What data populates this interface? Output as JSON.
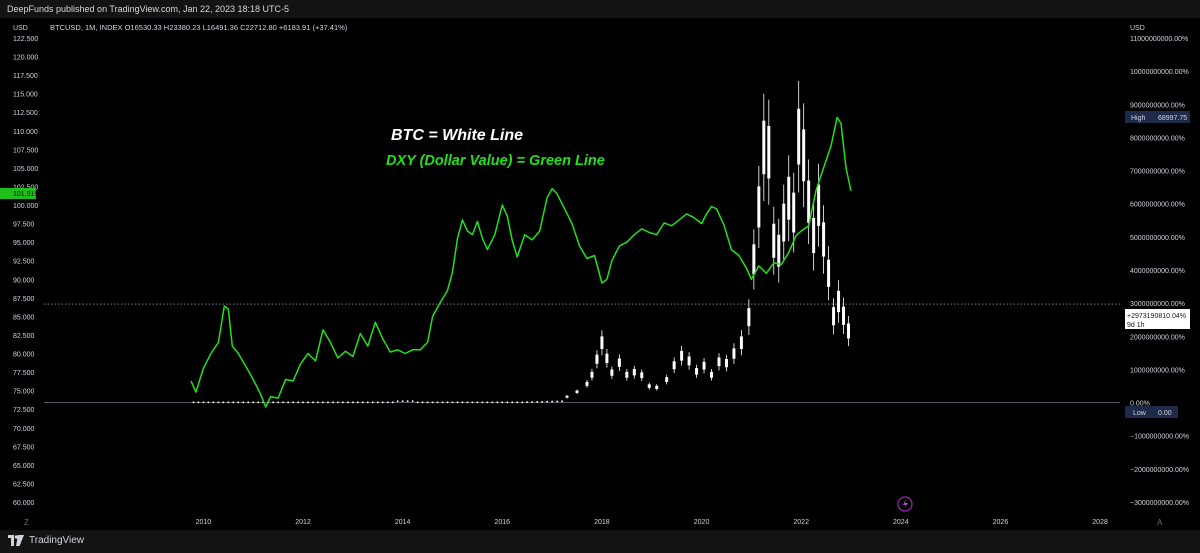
{
  "header": {
    "publisher_line": "DeepFunds published on TradingView.com, Jan 22, 2023 18:18 UTC-5"
  },
  "legend": {
    "ticker_line": "BTCUSD, 1M, INDEX  O16530.33  H23380.23  L16491.36  C22712.80  +6183.91 (+37.41%)"
  },
  "annotations": {
    "btc_label": "BTC = White Line",
    "dxy_label": "DXY (Dollar Value) = Green Line"
  },
  "left_axis": {
    "unit": "USD",
    "current_value_badge": "101.919"
  },
  "right_axis": {
    "unit": "USD",
    "high_label": "High",
    "high_value": "68997.75",
    "low_label": "Low",
    "low_value": "0.00",
    "current_pct": "+2973190810.04%",
    "countdown": "9d 1h"
  },
  "footer": {
    "brand": "TradingView",
    "left_corner": "Z",
    "right_corner": "A"
  },
  "colors": {
    "background": "#000000",
    "btc": "#ffffff",
    "dxy": "#22e01a",
    "badge_green": "#1fbf1a",
    "badge_navy": "#1e2a4a",
    "axis_text": "#d1d4dc"
  },
  "chart_data": {
    "type": "line",
    "x_ticks": [
      "2010",
      "2012",
      "2014",
      "2016",
      "2018",
      "2020",
      "2022",
      "2024",
      "2026",
      "2028"
    ],
    "left_ticks": [
      "122.500",
      "120.000",
      "117.500",
      "115.000",
      "112.500",
      "110.000",
      "107.500",
      "105.000",
      "102.500",
      "100.000",
      "97.500",
      "95.000",
      "92.500",
      "90.000",
      "87.500",
      "85.000",
      "82.500",
      "80.000",
      "77.500",
      "75.000",
      "72.500",
      "70.000",
      "67.500",
      "65.000",
      "62.500",
      "60.000"
    ],
    "right_ticks": [
      "11000000000.00%",
      "10000000000.00%",
      "9000000000.00%",
      "8000000000.00%",
      "7000000000.00%",
      "6000000000.00%",
      "5000000000.00%",
      "4000000000.00%",
      "3000000000.00%",
      "2000000000.00%",
      "1000000000.00%",
      "0.00%",
      "−1000000000.00%",
      "−2000000000.00%",
      "−3000000000.00%"
    ],
    "left_ylim": [
      60,
      122.5
    ],
    "right_ylim": [
      -3000000000,
      11000000000
    ],
    "x_range": [
      2006.8,
      2028.4
    ],
    "grid": false,
    "series": [
      {
        "name": "DXY (Dollar Value)",
        "axis": "left",
        "x": [
          2009.75,
          2009.85,
          2010.0,
          2010.15,
          2010.3,
          2010.42,
          2010.5,
          2010.58,
          2010.7,
          2010.85,
          2011.0,
          2011.15,
          2011.25,
          2011.35,
          2011.5,
          2011.65,
          2011.8,
          2011.95,
          2012.1,
          2012.25,
          2012.4,
          2012.55,
          2012.7,
          2012.85,
          2013.0,
          2013.15,
          2013.3,
          2013.45,
          2013.6,
          2013.75,
          2013.9,
          2014.05,
          2014.2,
          2014.35,
          2014.5,
          2014.6,
          2014.75,
          2014.9,
          2015.0,
          2015.1,
          2015.2,
          2015.3,
          2015.4,
          2015.5,
          2015.6,
          2015.7,
          2015.85,
          2016.0,
          2016.1,
          2016.2,
          2016.3,
          2016.45,
          2016.6,
          2016.75,
          2016.9,
          2017.0,
          2017.1,
          2017.25,
          2017.4,
          2017.55,
          2017.7,
          2017.85,
          2018.0,
          2018.1,
          2018.2,
          2018.35,
          2018.5,
          2018.65,
          2018.8,
          2018.95,
          2019.1,
          2019.25,
          2019.4,
          2019.55,
          2019.7,
          2019.85,
          2020.0,
          2020.1,
          2020.2,
          2020.3,
          2020.45,
          2020.6,
          2020.75,
          2020.9,
          2021.0,
          2021.15,
          2021.3,
          2021.45,
          2021.6,
          2021.75,
          2021.9,
          2022.0,
          2022.15,
          2022.3,
          2022.45,
          2022.6,
          2022.72,
          2022.8,
          2022.9,
          2023.0
        ],
        "values": [
          76.3,
          74.8,
          78.0,
          80.0,
          81.5,
          86.4,
          86.0,
          81.0,
          80.0,
          78.3,
          76.5,
          74.5,
          72.8,
          74.2,
          74.0,
          76.5,
          76.3,
          78.6,
          80.0,
          79.0,
          83.2,
          81.5,
          79.4,
          80.3,
          79.6,
          82.7,
          81.0,
          84.2,
          82.0,
          80.2,
          80.5,
          80.0,
          80.5,
          80.5,
          81.5,
          85.0,
          86.8,
          88.5,
          91.0,
          95.5,
          98.0,
          96.5,
          96.0,
          97.8,
          95.5,
          94.0,
          96.0,
          100.0,
          98.5,
          95.2,
          93.0,
          96.0,
          95.3,
          96.5,
          101.0,
          102.2,
          101.5,
          99.5,
          97.5,
          94.5,
          92.8,
          93.2,
          89.5,
          90.0,
          92.5,
          94.5,
          95.0,
          96.0,
          96.8,
          96.3,
          96.0,
          97.6,
          97.2,
          98.0,
          98.8,
          98.3,
          97.5,
          98.8,
          99.8,
          99.5,
          97.3,
          94.0,
          93.2,
          91.5,
          90.0,
          91.8,
          90.8,
          92.2,
          92.0,
          93.6,
          95.9,
          96.5,
          97.2,
          102.0,
          105.0,
          108.0,
          111.8,
          111.0,
          105.0,
          101.9
        ]
      },
      {
        "name": "BTC",
        "axis": "right",
        "type": "candlestick",
        "x": [
          2017.3,
          2017.5,
          2017.7,
          2017.8,
          2017.9,
          2018.0,
          2018.1,
          2018.2,
          2018.35,
          2018.5,
          2018.65,
          2018.8,
          2018.95,
          2019.1,
          2019.3,
          2019.45,
          2019.6,
          2019.75,
          2019.9,
          2020.05,
          2020.2,
          2020.35,
          2020.5,
          2020.65,
          2020.8,
          2020.95,
          2021.05,
          2021.15,
          2021.25,
          2021.35,
          2021.45,
          2021.55,
          2021.65,
          2021.75,
          2021.85,
          2021.95,
          2022.05,
          2022.15,
          2022.25,
          2022.35,
          2022.45,
          2022.55,
          2022.65,
          2022.75,
          2022.85,
          2022.95
        ],
        "values": [
          1350,
          2500,
          4300,
          6400,
          10000,
          13800,
          10200,
          6900,
          9200,
          6400,
          7000,
          6300,
          3800,
          3500,
          5300,
          8600,
          10800,
          9600,
          7200,
          8500,
          6400,
          9400,
          9100,
          11300,
          13800,
          19700,
          33000,
          45100,
          58800,
          57700,
          37300,
          35000,
          41500,
          47100,
          43800,
          61300,
          57000,
          46300,
          38500,
          45500,
          37600,
          29800,
          19900,
          23300,
          20000,
          16500
        ]
      }
    ]
  }
}
